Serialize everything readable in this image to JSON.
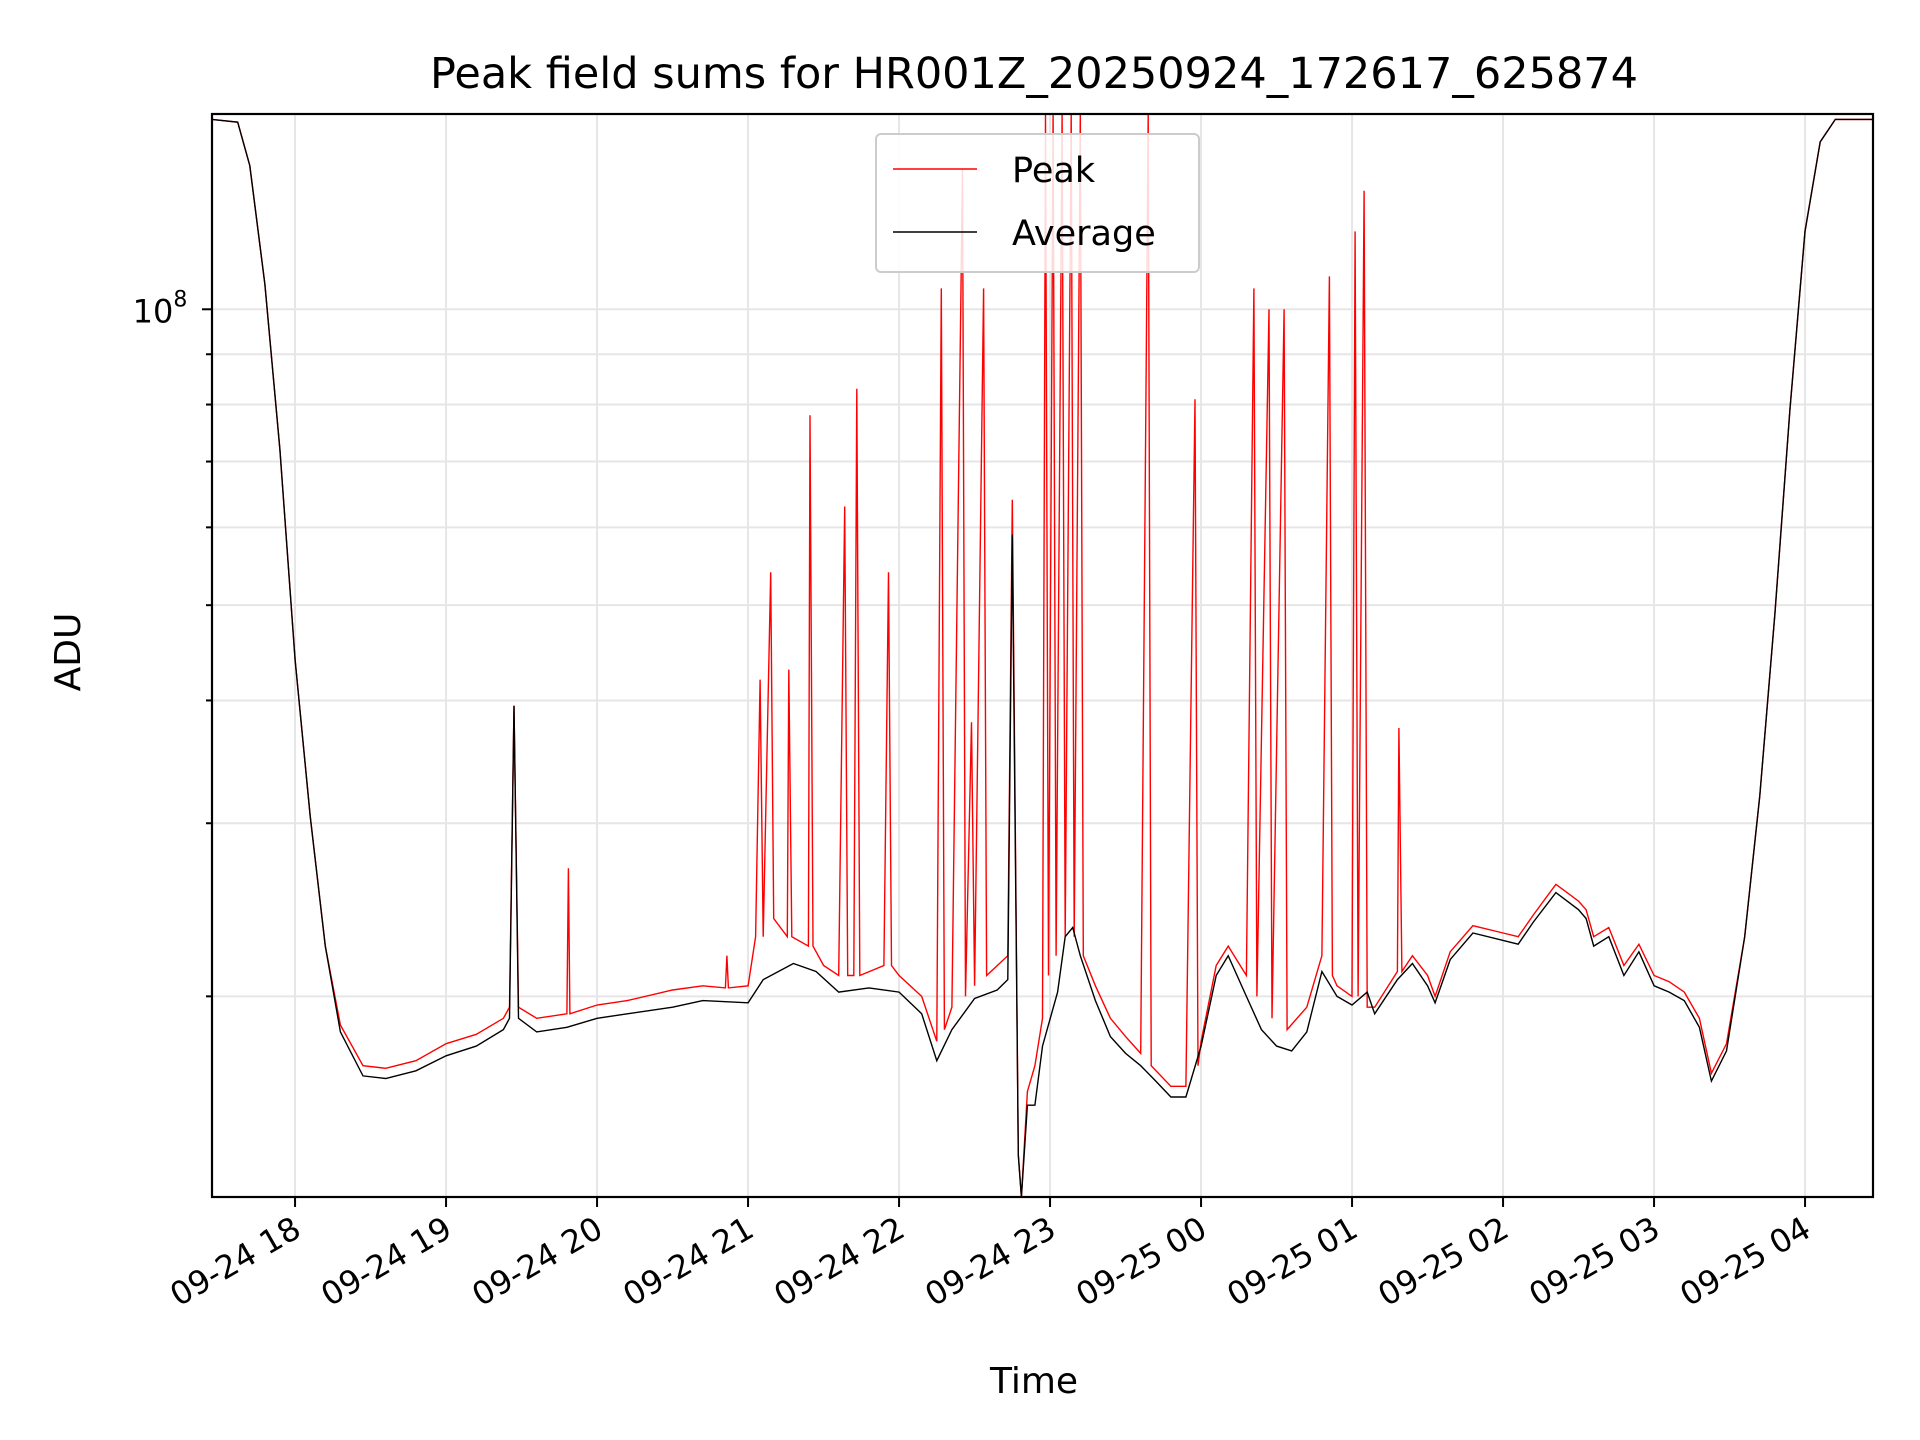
{
  "chart_data": {
    "type": "line",
    "title": "Peak field sums for HR001Z_20250924_172617_625874",
    "xlabel": "Time",
    "ylabel": "ADU",
    "yscale": "log",
    "grid": true,
    "legend_position": "upper-center",
    "x_unit": "hours since 2025-09-24 00:00",
    "xlim": [
      17.45,
      28.45
    ],
    "ylim": [
      12500000.0,
      158000000.0
    ],
    "x_ticks": [
      {
        "x": 18,
        "label": "09-24 18"
      },
      {
        "x": 19,
        "label": "09-24 19"
      },
      {
        "x": 20,
        "label": "09-24 20"
      },
      {
        "x": 21,
        "label": "09-24 21"
      },
      {
        "x": 22,
        "label": "09-24 22"
      },
      {
        "x": 23,
        "label": "09-24 23"
      },
      {
        "x": 24,
        "label": "09-25 00"
      },
      {
        "x": 25,
        "label": "09-25 01"
      },
      {
        "x": 26,
        "label": "09-25 02"
      },
      {
        "x": 27,
        "label": "09-25 03"
      },
      {
        "x": 28,
        "label": "09-25 04"
      }
    ],
    "y_major_ticks": [
      {
        "y": 100000000,
        "base": "10",
        "exp": "8"
      }
    ],
    "y_minor_ticks": [
      20000000,
      30000000,
      40000000,
      50000000,
      60000000,
      70000000,
      80000000,
      90000000
    ],
    "series": [
      {
        "name": "Average",
        "color": "#000000",
        "points": [
          [
            17.45,
            156000000.0
          ],
          [
            17.62,
            155000000.0
          ],
          [
            17.7,
            140000000.0
          ],
          [
            17.8,
            106000000.0
          ],
          [
            17.9,
            72000000.0
          ],
          [
            18.0,
            44000000.0
          ],
          [
            18.1,
            30500000.0
          ],
          [
            18.2,
            22500000.0
          ],
          [
            18.3,
            18400000.0
          ],
          [
            18.45,
            16600000.0
          ],
          [
            18.6,
            16500000.0
          ],
          [
            18.8,
            16800000.0
          ],
          [
            19.0,
            17400000.0
          ],
          [
            19.2,
            17800000.0
          ],
          [
            19.38,
            18500000.0
          ],
          [
            19.42,
            19000000.0
          ],
          [
            19.45,
            39500000.0
          ],
          [
            19.48,
            19000000.0
          ],
          [
            19.6,
            18400000.0
          ],
          [
            19.8,
            18600000.0
          ],
          [
            20.0,
            19000000.0
          ],
          [
            20.2,
            19200000.0
          ],
          [
            20.5,
            19500000.0
          ],
          [
            20.7,
            19800000.0
          ],
          [
            21.0,
            19700000.0
          ],
          [
            21.1,
            20800000.0
          ],
          [
            21.3,
            21600000.0
          ],
          [
            21.45,
            21200000.0
          ],
          [
            21.6,
            20200000.0
          ],
          [
            21.8,
            20400000.0
          ],
          [
            22.0,
            20200000.0
          ],
          [
            22.15,
            19200000.0
          ],
          [
            22.25,
            17200000.0
          ],
          [
            22.35,
            18500000.0
          ],
          [
            22.5,
            19900000.0
          ],
          [
            22.65,
            20300000.0
          ],
          [
            22.72,
            20800000.0
          ],
          [
            22.75,
            59000000.0
          ],
          [
            22.79,
            13800000.0
          ],
          [
            22.81,
            12500000.0
          ],
          [
            22.85,
            15500000.0
          ],
          [
            22.9,
            15500000.0
          ],
          [
            22.95,
            17800000.0
          ],
          [
            23.05,
            20200000.0
          ],
          [
            23.1,
            23000000.0
          ],
          [
            23.15,
            23500000.0
          ],
          [
            23.2,
            22000000.0
          ],
          [
            23.3,
            19800000.0
          ],
          [
            23.4,
            18200000.0
          ],
          [
            23.5,
            17500000.0
          ],
          [
            23.6,
            17000000.0
          ],
          [
            23.7,
            16400000.0
          ],
          [
            23.8,
            15800000.0
          ],
          [
            23.9,
            15800000.0
          ],
          [
            24.0,
            17800000.0
          ],
          [
            24.1,
            21000000.0
          ],
          [
            24.18,
            22000000.0
          ],
          [
            24.3,
            20000000.0
          ],
          [
            24.4,
            18500000.0
          ],
          [
            24.5,
            17800000.0
          ],
          [
            24.6,
            17600000.0
          ],
          [
            24.7,
            18400000.0
          ],
          [
            24.8,
            21200000.0
          ],
          [
            24.9,
            20000000.0
          ],
          [
            25.0,
            19600000.0
          ],
          [
            25.1,
            20200000.0
          ],
          [
            25.15,
            19200000.0
          ],
          [
            25.3,
            20800000.0
          ],
          [
            25.4,
            21600000.0
          ],
          [
            25.5,
            20500000.0
          ],
          [
            25.55,
            19700000.0
          ],
          [
            25.65,
            21800000.0
          ],
          [
            25.8,
            23200000.0
          ],
          [
            26.0,
            22800000.0
          ],
          [
            26.1,
            22600000.0
          ],
          [
            26.2,
            23800000.0
          ],
          [
            26.35,
            25500000.0
          ],
          [
            26.5,
            24500000.0
          ],
          [
            26.55,
            24000000.0
          ],
          [
            26.6,
            22500000.0
          ],
          [
            26.7,
            23000000.0
          ],
          [
            26.8,
            21000000.0
          ],
          [
            26.9,
            22200000.0
          ],
          [
            27.0,
            20500000.0
          ],
          [
            27.1,
            20200000.0
          ],
          [
            27.2,
            19800000.0
          ],
          [
            27.3,
            18600000.0
          ],
          [
            27.38,
            16400000.0
          ],
          [
            27.48,
            17600000.0
          ],
          [
            27.6,
            23000000.0
          ],
          [
            27.7,
            32000000.0
          ],
          [
            27.8,
            49000000.0
          ],
          [
            27.9,
            79000000.0
          ],
          [
            28.0,
            120000000.0
          ],
          [
            28.1,
            148000000.0
          ],
          [
            28.2,
            156000000.0
          ],
          [
            28.45,
            156000000.0
          ]
        ]
      },
      {
        "name": "Peak",
        "color": "#ff0000",
        "points": [
          [
            17.45,
            156000000.0
          ],
          [
            17.62,
            155000000.0
          ],
          [
            17.7,
            140000000.0
          ],
          [
            17.8,
            106000000.0
          ],
          [
            17.9,
            72000000.0
          ],
          [
            18.0,
            44000000.0
          ],
          [
            18.1,
            30500000.0
          ],
          [
            18.2,
            22500000.0
          ],
          [
            18.3,
            18700000.0
          ],
          [
            18.45,
            17000000.0
          ],
          [
            18.6,
            16900000.0
          ],
          [
            18.8,
            17200000.0
          ],
          [
            19.0,
            17900000.0
          ],
          [
            19.2,
            18300000.0
          ],
          [
            19.38,
            19000000.0
          ],
          [
            19.42,
            19500000.0
          ],
          [
            19.45,
            39500000.0
          ],
          [
            19.48,
            19500000.0
          ],
          [
            19.6,
            19000000.0
          ],
          [
            19.8,
            19200000.0
          ],
          [
            19.81,
            27000000.0
          ],
          [
            19.82,
            19200000.0
          ],
          [
            20.0,
            19600000.0
          ],
          [
            20.2,
            19800000.0
          ],
          [
            20.5,
            20300000.0
          ],
          [
            20.7,
            20500000.0
          ],
          [
            20.85,
            20400000.0
          ],
          [
            20.86,
            22000000.0
          ],
          [
            20.87,
            20400000.0
          ],
          [
            21.0,
            20500000.0
          ],
          [
            21.05,
            23000000.0
          ],
          [
            21.08,
            42000000.0
          ],
          [
            21.1,
            23000000.0
          ],
          [
            21.15,
            54000000.0
          ],
          [
            21.17,
            24000000.0
          ],
          [
            21.26,
            23000000.0
          ],
          [
            21.27,
            43000000.0
          ],
          [
            21.29,
            23000000.0
          ],
          [
            21.4,
            22500000.0
          ],
          [
            21.41,
            78000000.0
          ],
          [
            21.43,
            22500000.0
          ],
          [
            21.5,
            21500000.0
          ],
          [
            21.6,
            21000000.0
          ],
          [
            21.64,
            63000000.0
          ],
          [
            21.66,
            21000000.0
          ],
          [
            21.7,
            21000000.0
          ],
          [
            21.72,
            83000000.0
          ],
          [
            21.74,
            21000000.0
          ],
          [
            21.9,
            21500000.0
          ],
          [
            21.93,
            54000000.0
          ],
          [
            21.95,
            21500000.0
          ],
          [
            22.0,
            21000000.0
          ],
          [
            22.15,
            20000000.0
          ],
          [
            22.25,
            18000000.0
          ],
          [
            22.28,
            105000000.0
          ],
          [
            22.3,
            18500000.0
          ],
          [
            22.35,
            19500000.0
          ],
          [
            22.42,
            139000000.0
          ],
          [
            22.44,
            20000000.0
          ],
          [
            22.48,
            38000000.0
          ],
          [
            22.5,
            20500000.0
          ],
          [
            22.56,
            105000000.0
          ],
          [
            22.58,
            21000000.0
          ],
          [
            22.72,
            22000000.0
          ],
          [
            22.75,
            64000000.0
          ],
          [
            22.79,
            13800000.0
          ],
          [
            22.81,
            12500000.0
          ],
          [
            22.85,
            16000000.0
          ],
          [
            22.9,
            17000000.0
          ],
          [
            22.95,
            19000000.0
          ],
          [
            22.97,
            158000000.0
          ],
          [
            22.99,
            21000000.0
          ],
          [
            23.02,
            158000000.0
          ],
          [
            23.04,
            22000000.0
          ],
          [
            23.08,
            158000000.0
          ],
          [
            23.1,
            23000000.0
          ],
          [
            23.14,
            158000000.0
          ],
          [
            23.16,
            23000000.0
          ],
          [
            23.2,
            158000000.0
          ],
          [
            23.22,
            22000000.0
          ],
          [
            23.3,
            20500000.0
          ],
          [
            23.4,
            19000000.0
          ],
          [
            23.5,
            18200000.0
          ],
          [
            23.6,
            17500000.0
          ],
          [
            23.65,
            158000000.0
          ],
          [
            23.67,
            17000000.0
          ],
          [
            23.8,
            16200000.0
          ],
          [
            23.9,
            16200000.0
          ],
          [
            23.96,
            81000000.0
          ],
          [
            23.98,
            17000000.0
          ],
          [
            24.0,
            18000000.0
          ],
          [
            24.1,
            21500000.0
          ],
          [
            24.18,
            22500000.0
          ],
          [
            24.3,
            21000000.0
          ],
          [
            24.35,
            105000000.0
          ],
          [
            24.37,
            20000000.0
          ],
          [
            24.45,
            100000000.0
          ],
          [
            24.47,
            19000000.0
          ],
          [
            24.55,
            100000000.0
          ],
          [
            24.57,
            18500000.0
          ],
          [
            24.7,
            19500000.0
          ],
          [
            24.8,
            22000000.0
          ],
          [
            24.85,
            108000000.0
          ],
          [
            24.87,
            21000000.0
          ],
          [
            24.9,
            20500000.0
          ],
          [
            25.0,
            20000000.0
          ],
          [
            25.02,
            120000000.0
          ],
          [
            25.04,
            20000000.0
          ],
          [
            25.08,
            132000000.0
          ],
          [
            25.1,
            19500000.0
          ],
          [
            25.15,
            19500000.0
          ],
          [
            25.3,
            21200000.0
          ],
          [
            25.31,
            37500000.0
          ],
          [
            25.33,
            21200000.0
          ],
          [
            25.4,
            22000000.0
          ],
          [
            25.5,
            21000000.0
          ],
          [
            25.55,
            20000000.0
          ],
          [
            25.65,
            22200000.0
          ],
          [
            25.8,
            23600000.0
          ],
          [
            26.0,
            23200000.0
          ],
          [
            26.1,
            23000000.0
          ],
          [
            26.2,
            24200000.0
          ],
          [
            26.35,
            26000000.0
          ],
          [
            26.5,
            25000000.0
          ],
          [
            26.55,
            24500000.0
          ],
          [
            26.6,
            23000000.0
          ],
          [
            26.7,
            23500000.0
          ],
          [
            26.8,
            21500000.0
          ],
          [
            26.9,
            22600000.0
          ],
          [
            27.0,
            21000000.0
          ],
          [
            27.1,
            20700000.0
          ],
          [
            27.2,
            20200000.0
          ],
          [
            27.3,
            19000000.0
          ],
          [
            27.38,
            16700000.0
          ],
          [
            27.48,
            17900000.0
          ],
          [
            27.6,
            23000000.0
          ],
          [
            27.7,
            32000000.0
          ],
          [
            27.8,
            49000000.0
          ],
          [
            27.9,
            79000000.0
          ],
          [
            28.0,
            120000000.0
          ],
          [
            28.1,
            148000000.0
          ],
          [
            28.2,
            156000000.0
          ],
          [
            28.45,
            156000000.0
          ]
        ]
      }
    ],
    "legend": [
      {
        "name": "Peak",
        "color": "#ff0000"
      },
      {
        "name": "Average",
        "color": "#000000"
      }
    ]
  }
}
